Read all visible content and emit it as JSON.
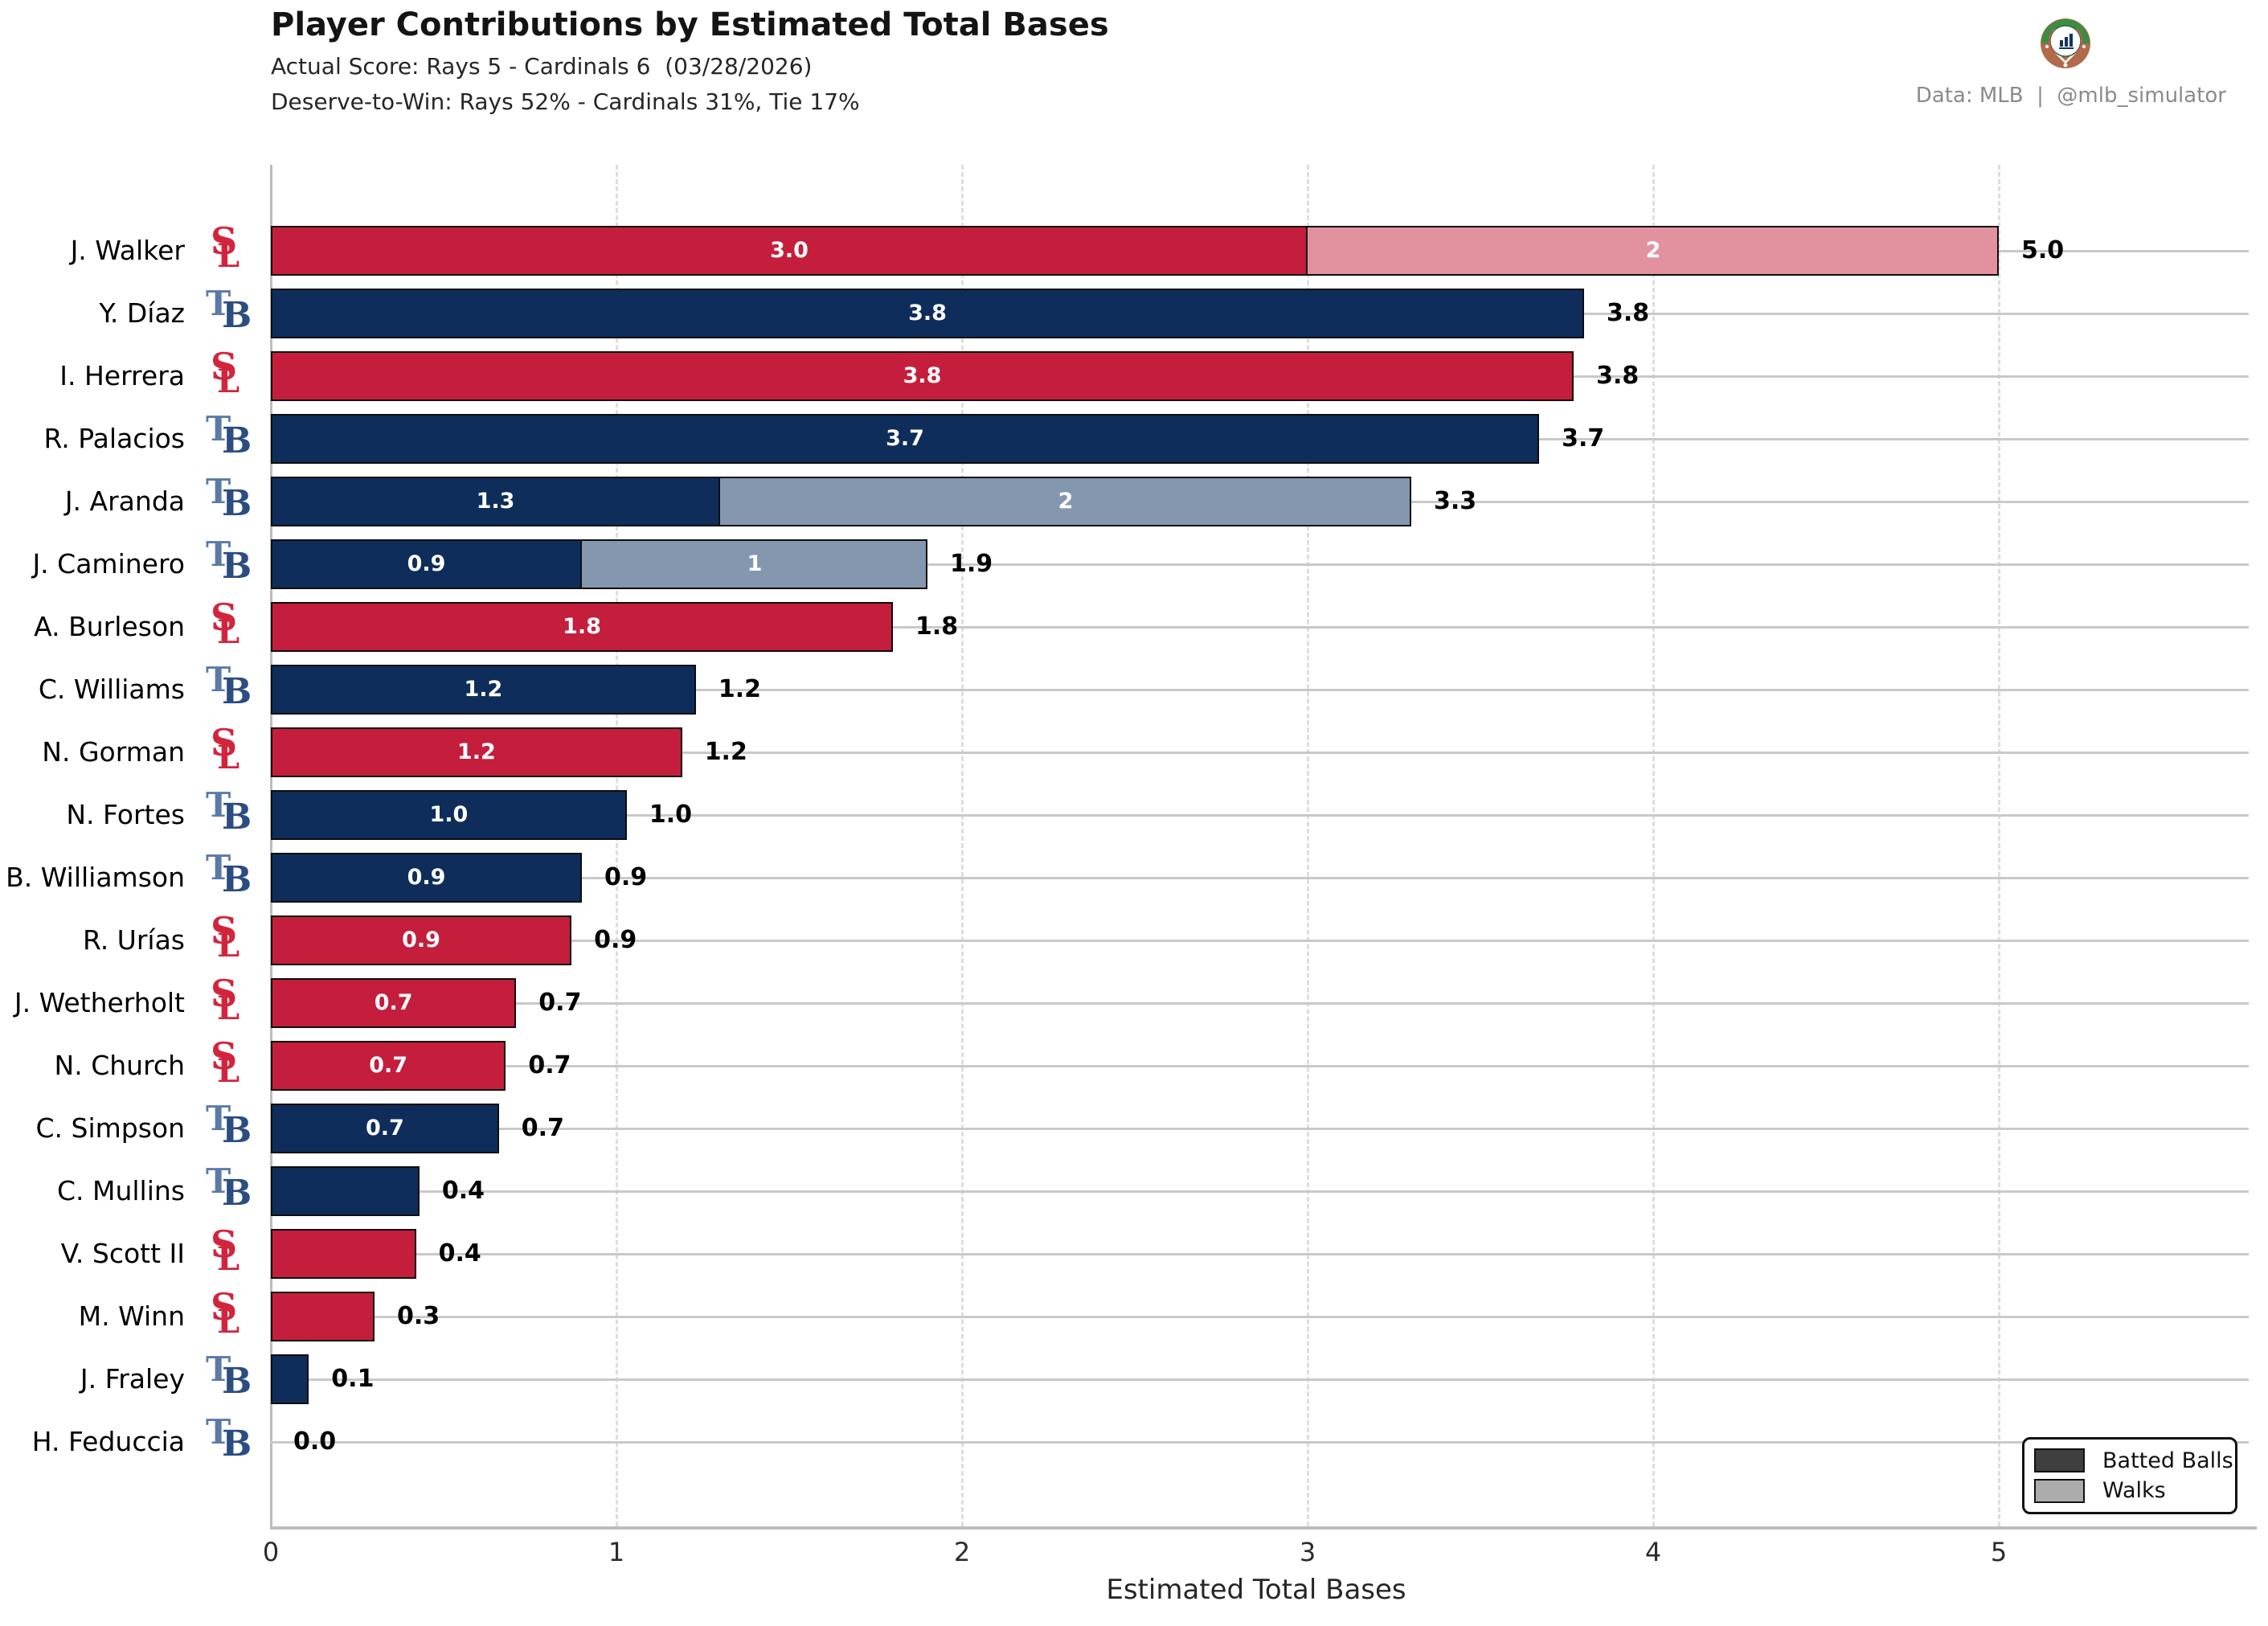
{
  "header": {
    "title": "Player Contributions by Estimated Total Bases",
    "subtitle_score": "Actual Score: Rays 5 - Cardinals 6  (03/28/2026)",
    "subtitle_deserve": "Deserve-to-Win: Rays 52% - Cardinals 31%, Tie 17%",
    "credit": "Data: MLB  |  @mlb_simulator"
  },
  "legend": {
    "batted_label": "Batted Balls",
    "walks_label": "Walks",
    "batted_swatch_color": "#3f3f3f",
    "walks_swatch_color": "#acacac"
  },
  "teams": {
    "STL": {
      "name": "Cardinals",
      "batted_color": "#c41e3c",
      "walks_color": "#e2929f",
      "logo_color": "#d2253d"
    },
    "TB": {
      "name": "Rays",
      "batted_color": "#0e2d5b",
      "walks_color": "#8497af",
      "logo_color": "#2b4d80"
    }
  },
  "chart_data": {
    "type": "bar",
    "orientation": "horizontal",
    "stacked": true,
    "title": "Player Contributions by Estimated Total Bases",
    "xlabel": "Estimated Total Bases",
    "ylabel": "",
    "xlim": [
      0,
      5.72
    ],
    "x_ticks": [
      0,
      1,
      2,
      3,
      4,
      5
    ],
    "grid": "vertical-dashed",
    "legend_position": "lower-right",
    "series_names": [
      "Batted Balls",
      "Walks"
    ],
    "players": [
      {
        "name": "J. Walker",
        "team": "STL",
        "batted": 3.0,
        "walks": 2,
        "batted_label": "3.0",
        "walks_label": "2",
        "total_label": "5.0"
      },
      {
        "name": "Y. Díaz",
        "team": "TB",
        "batted": 3.8,
        "walks": 0,
        "batted_label": "3.8",
        "walks_label": "",
        "total_label": "3.8"
      },
      {
        "name": "I. Herrera",
        "team": "STL",
        "batted": 3.77,
        "walks": 0,
        "batted_label": "3.8",
        "walks_label": "",
        "total_label": "3.8"
      },
      {
        "name": "R. Palacios",
        "team": "TB",
        "batted": 3.67,
        "walks": 0,
        "batted_label": "3.7",
        "walks_label": "",
        "total_label": "3.7"
      },
      {
        "name": "J. Aranda",
        "team": "TB",
        "batted": 1.3,
        "walks": 2,
        "batted_label": "1.3",
        "walks_label": "2",
        "total_label": "3.3"
      },
      {
        "name": "J. Caminero",
        "team": "TB",
        "batted": 0.9,
        "walks": 1,
        "batted_label": "0.9",
        "walks_label": "1",
        "total_label": "1.9"
      },
      {
        "name": "A. Burleson",
        "team": "STL",
        "batted": 1.8,
        "walks": 0,
        "batted_label": "1.8",
        "walks_label": "",
        "total_label": "1.8"
      },
      {
        "name": "C. Williams",
        "team": "TB",
        "batted": 1.23,
        "walks": 0,
        "batted_label": "1.2",
        "walks_label": "",
        "total_label": "1.2"
      },
      {
        "name": "N. Gorman",
        "team": "STL",
        "batted": 1.19,
        "walks": 0,
        "batted_label": "1.2",
        "walks_label": "",
        "total_label": "1.2"
      },
      {
        "name": "N. Fortes",
        "team": "TB",
        "batted": 1.03,
        "walks": 0,
        "batted_label": "1.0",
        "walks_label": "",
        "total_label": "1.0"
      },
      {
        "name": "B. Williamson",
        "team": "TB",
        "batted": 0.9,
        "walks": 0,
        "batted_label": "0.9",
        "walks_label": "",
        "total_label": "0.9"
      },
      {
        "name": "R. Urías",
        "team": "STL",
        "batted": 0.87,
        "walks": 0,
        "batted_label": "0.9",
        "walks_label": "",
        "total_label": "0.9"
      },
      {
        "name": "J. Wetherholt",
        "team": "STL",
        "batted": 0.71,
        "walks": 0,
        "batted_label": "0.7",
        "walks_label": "",
        "total_label": "0.7"
      },
      {
        "name": "N. Church",
        "team": "STL",
        "batted": 0.68,
        "walks": 0,
        "batted_label": "0.7",
        "walks_label": "",
        "total_label": "0.7"
      },
      {
        "name": "C. Simpson",
        "team": "TB",
        "batted": 0.66,
        "walks": 0,
        "batted_label": "0.7",
        "walks_label": "",
        "total_label": "0.7"
      },
      {
        "name": "C. Mullins",
        "team": "TB",
        "batted": 0.43,
        "walks": 0,
        "batted_label": "",
        "walks_label": "",
        "total_label": "0.4"
      },
      {
        "name": "V. Scott II",
        "team": "STL",
        "batted": 0.42,
        "walks": 0,
        "batted_label": "",
        "walks_label": "",
        "total_label": "0.4"
      },
      {
        "name": "M. Winn",
        "team": "STL",
        "batted": 0.3,
        "walks": 0,
        "batted_label": "",
        "walks_label": "",
        "total_label": "0.3"
      },
      {
        "name": "J. Fraley",
        "team": "TB",
        "batted": 0.11,
        "walks": 0,
        "batted_label": "",
        "walks_label": "",
        "total_label": "0.1"
      },
      {
        "name": "H. Feduccia",
        "team": "TB",
        "batted": 0.0,
        "walks": 0,
        "batted_label": "",
        "walks_label": "",
        "total_label": "0.0"
      }
    ]
  }
}
